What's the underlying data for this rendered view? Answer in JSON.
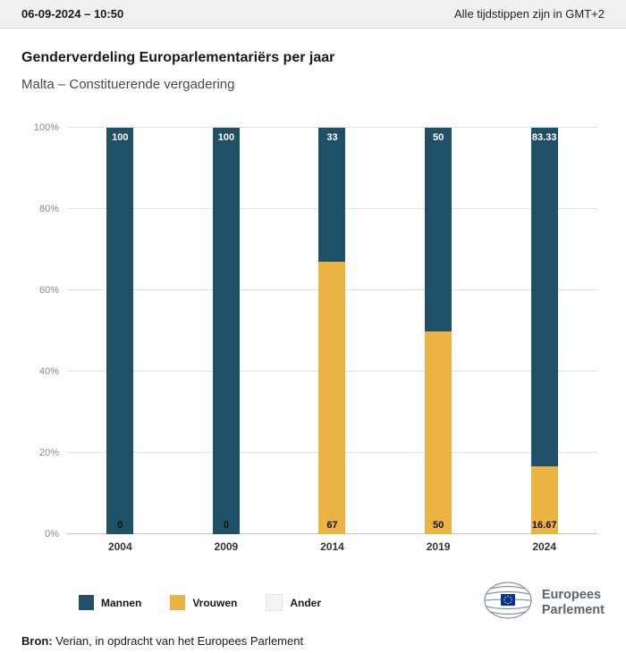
{
  "header": {
    "datetime": "06-09-2024 – 10:50",
    "timezone_note": "Alle tijdstippen zijn in GMT+2"
  },
  "title": "Genderverdeling Europarlementariërs per jaar",
  "subtitle": "Malta – Constituerende vergadering",
  "chart_data": {
    "type": "bar",
    "stacked": true,
    "percent_stacked": true,
    "categories": [
      "2004",
      "2009",
      "2014",
      "2019",
      "2024"
    ],
    "series": [
      {
        "name": "Mannen",
        "color": "#1f5068",
        "values": [
          100,
          100,
          33,
          50,
          83.33
        ]
      },
      {
        "name": "Vrouwen",
        "color": "#ebb341",
        "values": [
          0,
          0,
          67,
          50,
          16.67
        ]
      },
      {
        "name": "Ander",
        "color": "#f4f4f4",
        "values": [
          0,
          0,
          0,
          0,
          0
        ]
      }
    ],
    "value_labels": {
      "top": [
        "100",
        "100",
        "33",
        "50",
        "83.33"
      ],
      "bottom": [
        "0",
        "0",
        "67",
        "50",
        "16.67"
      ]
    },
    "yticks": [
      "0%",
      "20%",
      "40%",
      "60%",
      "80%",
      "100%"
    ],
    "ylim": [
      0,
      100
    ],
    "grid": true,
    "legend_position": "bottom"
  },
  "legend": [
    {
      "label": "Mannen",
      "color": "#1f5068"
    },
    {
      "label": "Vrouwen",
      "color": "#ebb341"
    },
    {
      "label": "Ander",
      "color": "#f4f4f4",
      "border": "#e3e3e3"
    }
  ],
  "logo": {
    "line1": "Europees",
    "line2": "Parlement"
  },
  "footer": {
    "source_label": "Bron:",
    "source_text": "Verian, in opdracht van het Europees Parlement"
  }
}
